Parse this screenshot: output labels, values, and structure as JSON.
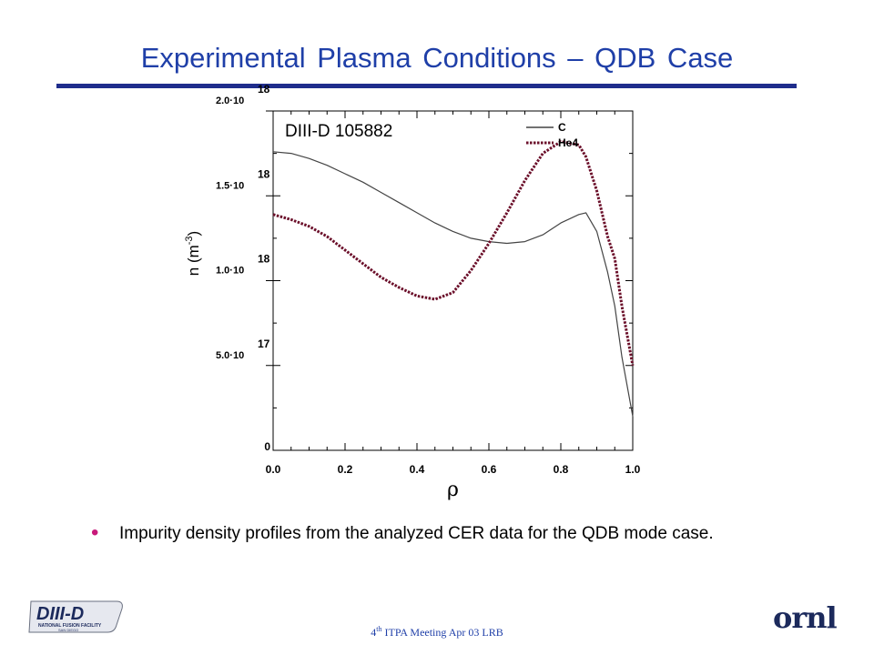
{
  "slide": {
    "title": "Experimental Plasma Conditions – QDB  Case",
    "bullet": "Impurity density profiles from the analyzed CER data for the QDB mode case.",
    "footer": {
      "ordinal": "4",
      "ordinal_suffix": "th",
      "text": " ITPA Meeting  Apr 03  LRB"
    },
    "logo_left": {
      "text": "DIII-D",
      "subtext": "NATIONAL FUSION FACILITY",
      "subtext2": "SAN DIEGO"
    },
    "logo_right": {
      "text": "ornl"
    }
  },
  "colors": {
    "title": "#1f3fa8",
    "rule": "#1f2d8c",
    "bullet": "#c8197a",
    "series_c": "#444444",
    "series_he4": "#6b0f2a"
  },
  "chart_data": {
    "type": "line",
    "annotation": "DIII-D  105882",
    "xlabel": "ρ",
    "ylabel": "n (m-3)",
    "ylabel_parts": {
      "main": "n (m",
      "sup": "-3",
      "close": ")"
    },
    "xlim": [
      0.0,
      1.0
    ],
    "ylim": [
      0,
      2e+18
    ],
    "x_ticks": [
      {
        "value": 0.0,
        "label": "0.0"
      },
      {
        "value": 0.2,
        "label": "0.2"
      },
      {
        "value": 0.4,
        "label": "0.4"
      },
      {
        "value": 0.6,
        "label": "0.6"
      },
      {
        "value": 0.8,
        "label": "0.8"
      },
      {
        "value": 1.0,
        "label": "1.0"
      }
    ],
    "y_ticks": [
      {
        "value": 0,
        "mantissa": "0",
        "exponent": ""
      },
      {
        "value": 5e+17,
        "mantissa": "5.0·10",
        "exponent": "17"
      },
      {
        "value": 1e+18,
        "mantissa": "1.0·10",
        "exponent": "18"
      },
      {
        "value": 1.5e+18,
        "mantissa": "1.5·10",
        "exponent": "18"
      },
      {
        "value": 2e+18,
        "mantissa": "2.0·10",
        "exponent": "18"
      }
    ],
    "legend_position": "top-right",
    "series": [
      {
        "name": "C",
        "style": "solid",
        "x": [
          0.0,
          0.05,
          0.1,
          0.15,
          0.2,
          0.25,
          0.3,
          0.35,
          0.4,
          0.45,
          0.5,
          0.55,
          0.6,
          0.65,
          0.7,
          0.75,
          0.8,
          0.85,
          0.87,
          0.9,
          0.93,
          0.95,
          0.97,
          1.0
        ],
        "y": [
          1.76e+18,
          1.75e+18,
          1.72e+18,
          1.68e+18,
          1.63e+18,
          1.58e+18,
          1.52e+18,
          1.46e+18,
          1.4e+18,
          1.34e+18,
          1.29e+18,
          1.25e+18,
          1.23e+18,
          1.22e+18,
          1.23e+18,
          1.27e+18,
          1.34e+18,
          1.39e+18,
          1.4e+18,
          1.29e+18,
          1.05e+18,
          8.5e+17,
          5.5e+17,
          2e+17
        ]
      },
      {
        "name": "He4",
        "style": "dotted",
        "x": [
          0.0,
          0.05,
          0.1,
          0.15,
          0.2,
          0.25,
          0.3,
          0.35,
          0.4,
          0.45,
          0.5,
          0.55,
          0.6,
          0.65,
          0.7,
          0.75,
          0.8,
          0.85,
          0.87,
          0.9,
          0.93,
          0.95,
          0.97,
          1.0
        ],
        "y": [
          1.39e+18,
          1.36e+18,
          1.32e+18,
          1.26e+18,
          1.18e+18,
          1.1e+18,
          1.02e+18,
          9.6e+17,
          9.1e+17,
          8.9e+17,
          9.3e+17,
          1.06e+18,
          1.22e+18,
          1.4e+18,
          1.59e+18,
          1.75e+18,
          1.82e+18,
          1.8e+18,
          1.73e+18,
          1.53e+18,
          1.26e+18,
          1.13e+18,
          8.5e+17,
          5e+17
        ]
      }
    ]
  }
}
